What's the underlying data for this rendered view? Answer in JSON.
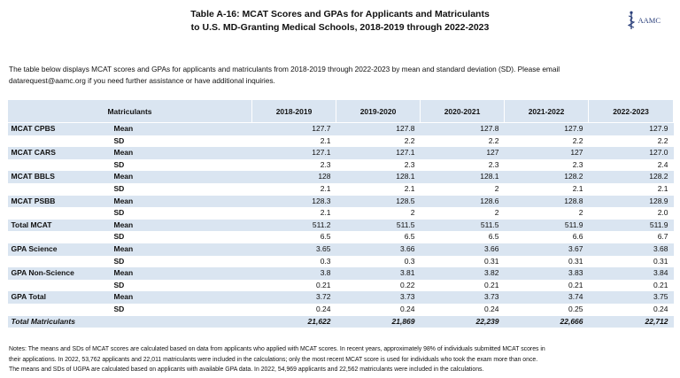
{
  "title": {
    "line1": "Table A-16: MCAT Scores and GPAs for Applicants and Matriculants",
    "line2": "to U.S. MD-Granting Medical Schools, 2018-2019 through 2022-2023"
  },
  "logo": {
    "text": "AAMC",
    "icon": "aamc-caduceus-icon"
  },
  "intro": {
    "line1": "The table below displays MCAT scores and GPAs for applicants and matriculants from 2018-2019 through 2022-2023 by mean and standard deviation (SD). Please email",
    "line2": "datarequest@aamc.org if you need further assistance or have additional inquiries."
  },
  "table": {
    "header": [
      "Matriculants",
      "2018-2019",
      "2019-2020",
      "2020-2021",
      "2021-2022",
      "2022-2023"
    ],
    "rows": [
      {
        "metric": "MCAT CPBS",
        "stat": "Mean",
        "values": [
          "127.7",
          "127.8",
          "127.8",
          "127.9",
          "127.9"
        ]
      },
      {
        "metric": "",
        "stat": "SD",
        "values": [
          "2.1",
          "2.2",
          "2.2",
          "2.2",
          "2.2"
        ]
      },
      {
        "metric": "MCAT CARS",
        "stat": "Mean",
        "values": [
          "127.1",
          "127.1",
          "127",
          "127",
          "127.0"
        ]
      },
      {
        "metric": "",
        "stat": "SD",
        "values": [
          "2.3",
          "2.3",
          "2.3",
          "2.3",
          "2.4"
        ]
      },
      {
        "metric": "MCAT BBLS",
        "stat": "Mean",
        "values": [
          "128",
          "128.1",
          "128.1",
          "128.2",
          "128.2"
        ]
      },
      {
        "metric": "",
        "stat": "SD",
        "values": [
          "2.1",
          "2.1",
          "2",
          "2.1",
          "2.1"
        ]
      },
      {
        "metric": "MCAT PSBB",
        "stat": "Mean",
        "values": [
          "128.3",
          "128.5",
          "128.6",
          "128.8",
          "128.9"
        ]
      },
      {
        "metric": "",
        "stat": "SD",
        "values": [
          "2.1",
          "2",
          "2",
          "2",
          "2.0"
        ]
      },
      {
        "metric": "Total MCAT",
        "stat": "Mean",
        "values": [
          "511.2",
          "511.5",
          "511.5",
          "511.9",
          "511.9"
        ]
      },
      {
        "metric": "",
        "stat": "SD",
        "values": [
          "6.5",
          "6.5",
          "6.5",
          "6.6",
          "6.7"
        ]
      },
      {
        "metric": "GPA Science",
        "stat": "Mean",
        "values": [
          "3.65",
          "3.66",
          "3.66",
          "3.67",
          "3.68"
        ]
      },
      {
        "metric": "",
        "stat": "SD",
        "values": [
          "0.3",
          "0.3",
          "0.31",
          "0.31",
          "0.31"
        ]
      },
      {
        "metric": "GPA Non-Science",
        "stat": "Mean",
        "values": [
          "3.8",
          "3.81",
          "3.82",
          "3.83",
          "3.84"
        ]
      },
      {
        "metric": "",
        "stat": "SD",
        "values": [
          "0.21",
          "0.22",
          "0.21",
          "0.21",
          "0.21"
        ]
      },
      {
        "metric": "GPA Total",
        "stat": "Mean",
        "values": [
          "3.72",
          "3.73",
          "3.73",
          "3.74",
          "3.75"
        ]
      },
      {
        "metric": "",
        "stat": "SD",
        "values": [
          "0.24",
          "0.24",
          "0.24",
          "0.25",
          "0.24"
        ]
      }
    ],
    "total": {
      "label": "Total Matriculants",
      "values": [
        "21,622",
        "21,869",
        "22,239",
        "22,666",
        "22,712"
      ]
    }
  },
  "notes": {
    "line1": "Notes: The means and SDs of MCAT scores are calculated based on data from applicants who applied with MCAT scores. In recent years, approximately 98% of individuals submitted MCAT scores in",
    "line2": "their applications. In 2022, 53,762 applicants and 22,011 matriculants were included in the calculations; only the most recent MCAT score is used for individuals who took the exam more than once.",
    "line3": "The means and SDs of UGPA are calculated based on applicants with available GPA data. In 2022, 54,969 applicants and 22,562 matriculants were included in the calculations."
  },
  "colors": {
    "band": "#dae5f1",
    "logo": "#2a3f7a"
  }
}
